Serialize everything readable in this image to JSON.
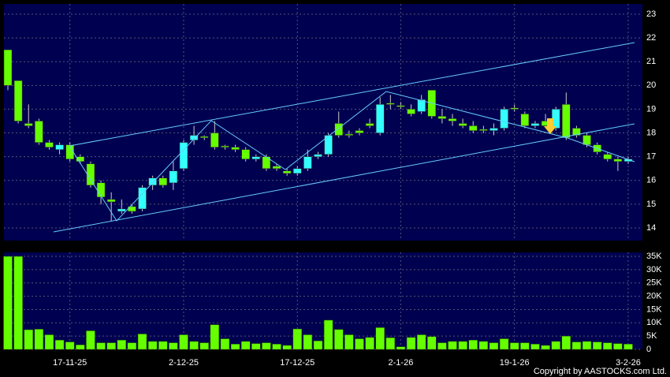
{
  "chart_data": {
    "type": "candlestick",
    "categories": [
      null,
      null,
      null,
      null,
      null,
      null,
      "17-11-25",
      null,
      null,
      null,
      null,
      null,
      null,
      null,
      null,
      null,
      null,
      "2-12-25",
      null,
      null,
      null,
      null,
      null,
      null,
      null,
      null,
      null,
      null,
      "17-12-25",
      null,
      null,
      null,
      null,
      null,
      null,
      null,
      null,
      null,
      "2-1-26",
      null,
      null,
      null,
      null,
      null,
      null,
      null,
      null,
      null,
      null,
      "19-1-26",
      null,
      null,
      null,
      null,
      null,
      null,
      null,
      null,
      null,
      null,
      "3-2-26"
    ],
    "open": [
      21.5,
      20.2,
      18.4,
      18.5,
      17.6,
      17.3,
      17.5,
      17.0,
      16.7,
      15.9,
      15.2,
      14.7,
      14.9,
      14.8,
      15.8,
      16.1,
      15.9,
      16.5,
      17.7,
      17.85,
      18.0,
      17.45,
      17.4,
      17.3,
      16.9,
      17.0,
      16.6,
      16.4,
      16.3,
      16.5,
      17.0,
      17.1,
      18.4,
      17.95,
      18.1,
      18.4,
      18.0,
      19.25,
      19.15,
      19.0,
      18.9,
      19.8,
      18.7,
      18.6,
      18.4,
      18.3,
      18.15,
      18.1,
      18.2,
      19.05,
      18.8,
      18.3,
      18.5,
      18.2,
      19.2,
      18.2,
      17.9,
      17.5,
      17.1,
      16.9,
      16.8
    ],
    "high": [
      21.5,
      20.2,
      19.2,
      18.6,
      17.7,
      17.6,
      17.6,
      17.1,
      16.8,
      16.0,
      15.5,
      15.2,
      15.0,
      15.8,
      16.2,
      16.2,
      16.8,
      17.7,
      18.3,
      17.9,
      18.5,
      17.5,
      17.5,
      17.4,
      17.1,
      17.1,
      16.7,
      16.5,
      16.6,
      17.3,
      17.2,
      18.0,
      18.9,
      18.1,
      18.2,
      18.6,
      19.5,
      19.6,
      19.3,
      19.2,
      19.6,
      19.8,
      19.0,
      18.8,
      18.6,
      18.5,
      18.3,
      18.4,
      19.1,
      19.2,
      18.9,
      18.5,
      18.8,
      19.1,
      19.7,
      18.3,
      18.0,
      17.6,
      17.2,
      17.0,
      17.0
    ],
    "low": [
      19.8,
      18.4,
      18.2,
      17.5,
      17.3,
      17.1,
      16.8,
      16.7,
      15.7,
      15.0,
      14.3,
      14.6,
      14.6,
      14.7,
      15.6,
      15.7,
      15.6,
      16.4,
      17.5,
      17.7,
      17.3,
      17.3,
      17.2,
      16.8,
      16.8,
      16.4,
      16.4,
      16.2,
      16.2,
      16.4,
      16.9,
      17.0,
      17.8,
      17.8,
      17.9,
      18.2,
      17.9,
      19.0,
      19.0,
      18.7,
      18.8,
      18.6,
      18.4,
      18.3,
      18.2,
      18.0,
      18.0,
      17.9,
      18.1,
      18.9,
      18.2,
      18.2,
      18.3,
      18.1,
      17.7,
      17.8,
      17.4,
      17.1,
      16.8,
      16.4,
      16.7
    ],
    "close": [
      20.0,
      18.5,
      18.3,
      17.6,
      17.4,
      17.5,
      16.9,
      16.8,
      15.8,
      15.3,
      15.1,
      14.8,
      14.7,
      15.7,
      16.1,
      15.8,
      16.4,
      17.6,
      17.9,
      17.8,
      17.4,
      17.4,
      17.3,
      16.9,
      17.0,
      16.5,
      16.5,
      16.3,
      16.5,
      17.0,
      17.1,
      17.9,
      17.9,
      17.9,
      18.0,
      18.3,
      19.2,
      19.2,
      19.1,
      18.8,
      19.4,
      18.7,
      18.6,
      18.5,
      18.3,
      18.1,
      18.1,
      18.2,
      19.0,
      19.0,
      18.3,
      18.4,
      18.3,
      19.0,
      17.8,
      17.9,
      17.5,
      17.2,
      16.9,
      16.8,
      16.9
    ],
    "volume": [
      35000,
      35000,
      7400,
      7600,
      5500,
      3500,
      2800,
      1700,
      7000,
      2500,
      2500,
      3500,
      2500,
      5800,
      3000,
      3000,
      2500,
      5500,
      3000,
      2500,
      9300,
      4000,
      2000,
      3000,
      2200,
      2500,
      2000,
      1500,
      7700,
      5500,
      3200,
      11000,
      7500,
      5500,
      4000,
      4500,
      8200,
      4400,
      1000,
      4500,
      5500,
      4800,
      2500,
      3000,
      3000,
      3500,
      3000,
      2500,
      4000,
      2500,
      2500,
      2000,
      1500,
      3000,
      5000,
      2800,
      3000,
      2800,
      2500,
      2200,
      2000
    ],
    "ylim": [
      13.47,
      23.43
    ],
    "yticks": [
      14,
      15,
      16,
      17,
      18,
      19,
      20,
      21,
      22,
      23
    ],
    "volume_ylim": [
      0,
      36500
    ],
    "volume_yticks": [
      0,
      {
        "value": 5000,
        "label": "5K"
      },
      {
        "value": 10000,
        "label": "10K"
      },
      {
        "value": 15000,
        "label": "15K"
      },
      {
        "value": 20000,
        "label": "20K"
      },
      {
        "value": 25000,
        "label": "25K"
      },
      {
        "value": 30000,
        "label": "30K"
      },
      {
        "value": 35000,
        "label": "35K"
      }
    ],
    "up_color": "#33ffff",
    "down_color": "#66ff00",
    "volume_color": "#66ff00",
    "grid": true,
    "copyright": "Copyright by AASTOCKS.com Ltd."
  }
}
